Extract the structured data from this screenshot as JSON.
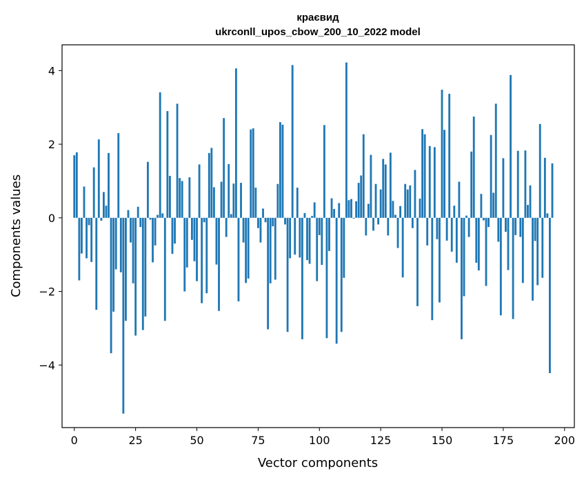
{
  "chart_data": {
    "type": "bar",
    "title": "краєвид",
    "subtitle": "ukrconll_upos_cbow_200_10_2022 model",
    "xlabel": "Vector components",
    "ylabel": "Components values",
    "xlim": [
      -5,
      204
    ],
    "ylim": [
      -5.7,
      4.7
    ],
    "xticks": [
      0,
      25,
      50,
      75,
      100,
      125,
      150,
      175,
      200
    ],
    "xtick_labels": [
      "0",
      "25",
      "50",
      "75",
      "100",
      "125",
      "150",
      "175",
      "200"
    ],
    "yticks": [
      -4,
      -2,
      0,
      2,
      4
    ],
    "ytick_labels": [
      "−4",
      "−2",
      "0",
      "2",
      "4"
    ],
    "bar_color": "#1f77b4",
    "grid": false,
    "values": [
      1.7,
      1.78,
      -1.7,
      -0.97,
      0.85,
      -1.1,
      -0.2,
      -1.2,
      1.37,
      -2.5,
      2.13,
      -0.08,
      0.7,
      0.33,
      1.76,
      -3.68,
      -2.55,
      -1.4,
      2.3,
      -1.48,
      -5.32,
      -2.8,
      0.21,
      -0.67,
      -1.78,
      -3.2,
      0.3,
      -0.25,
      -3.05,
      -2.68,
      1.52,
      -0.05,
      -1.21,
      -0.75,
      0.08,
      3.41,
      0.12,
      -2.8,
      2.9,
      1.14,
      -0.98,
      -0.7,
      3.1,
      1.08,
      1.0,
      -2.0,
      -1.35,
      1.1,
      -0.6,
      -1.18,
      -1.72,
      1.45,
      -2.32,
      -0.12,
      -2.05,
      1.76,
      1.9,
      0.83,
      -1.27,
      -2.53,
      0.98,
      2.71,
      -0.52,
      1.46,
      0.1,
      0.93,
      4.06,
      -2.27,
      0.95,
      -0.67,
      -1.77,
      -1.65,
      2.4,
      2.43,
      0.82,
      -0.28,
      -0.67,
      0.25,
      -0.12,
      -3.03,
      -1.78,
      -0.23,
      -1.68,
      0.92,
      2.6,
      2.53,
      -0.18,
      -3.1,
      -1.1,
      4.15,
      -1.0,
      0.82,
      -1.08,
      -3.3,
      0.13,
      -1.15,
      -1.25,
      0.05,
      0.42,
      -1.72,
      -0.47,
      -1.28,
      2.52,
      -3.27,
      -0.9,
      0.53,
      0.24,
      -3.42,
      0.4,
      -3.1,
      -1.63,
      4.22,
      0.48,
      0.51,
      -0.02,
      0.45,
      0.95,
      1.15,
      2.27,
      -0.48,
      0.38,
      1.71,
      -0.35,
      0.92,
      -0.18,
      0.77,
      1.6,
      1.45,
      -0.48,
      1.77,
      0.46,
      0.08,
      -0.82,
      0.32,
      -1.62,
      0.92,
      0.77,
      0.88,
      -0.28,
      1.3,
      -2.4,
      0.52,
      2.41,
      2.27,
      -0.75,
      1.95,
      -2.78,
      1.92,
      -0.58,
      -2.3,
      3.48,
      2.39,
      -0.62,
      3.37,
      -0.92,
      0.33,
      -1.22,
      0.98,
      -3.3,
      -2.13,
      0.06,
      -0.52,
      1.8,
      2.75,
      -1.22,
      -1.43,
      0.65,
      -0.07,
      -1.85,
      -0.25,
      2.25,
      0.68,
      3.1,
      -0.65,
      -2.65,
      1.62,
      -0.38,
      -1.42,
      3.88,
      -2.75,
      -0.47,
      1.82,
      -0.52,
      -1.77,
      1.83,
      0.35,
      0.88,
      -2.25,
      -0.63,
      -1.83,
      2.55,
      -1.63,
      1.63,
      0.12,
      -4.22,
      1.48
    ]
  }
}
